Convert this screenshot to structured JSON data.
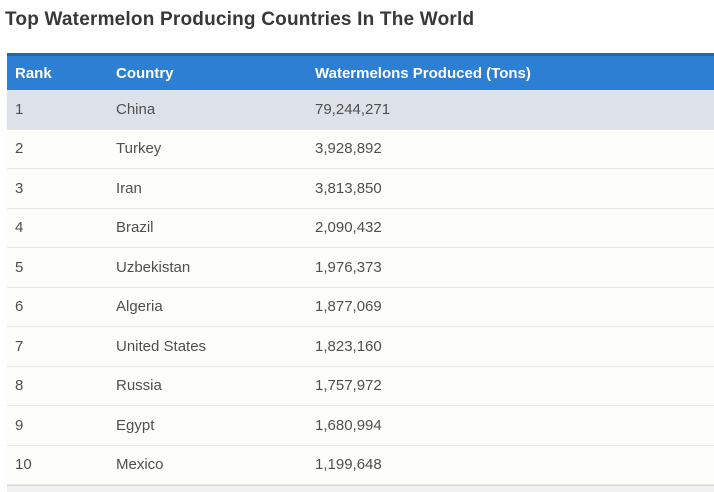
{
  "page": {
    "title": "Top Watermelon Producing Countries In The World"
  },
  "table": {
    "columns": [
      "Rank",
      "Country",
      "Watermelons Produced (Tons)"
    ],
    "rows": [
      {
        "rank": "1",
        "country": "China",
        "produced": "79,244,271",
        "highlighted": true
      },
      {
        "rank": "2",
        "country": "Turkey",
        "produced": "3,928,892",
        "highlighted": false
      },
      {
        "rank": "3",
        "country": "Iran",
        "produced": "3,813,850",
        "highlighted": false
      },
      {
        "rank": "4",
        "country": "Brazil",
        "produced": "2,090,432",
        "highlighted": false
      },
      {
        "rank": "5",
        "country": "Uzbekistan",
        "produced": "1,976,373",
        "highlighted": false
      },
      {
        "rank": "6",
        "country": "Algeria",
        "produced": "1,877,069",
        "highlighted": false
      },
      {
        "rank": "7",
        "country": "United States",
        "produced": "1,823,160",
        "highlighted": false
      },
      {
        "rank": "8",
        "country": "Russia",
        "produced": "1,757,972",
        "highlighted": false
      },
      {
        "rank": "9",
        "country": "Egypt",
        "produced": "1,680,994",
        "highlighted": false
      },
      {
        "rank": "10",
        "country": "Mexico",
        "produced": "1,199,648",
        "highlighted": false
      }
    ]
  },
  "colors": {
    "title_text": "#383838",
    "header_bg": "#2d7fd3",
    "header_border": "#2465ae",
    "header_text": "#ffffff",
    "highlight_row_bg": "#dde2e9",
    "row_bg": "#fdfdfa",
    "row_border": "#e8e8e6",
    "body_text": "#4f4f4f",
    "footer_strip_bg": "#f1f1f1",
    "footer_strip_border": "#d6d6d6"
  },
  "chart_data": {
    "type": "table",
    "title": "Top Watermelon Producing Countries In The World",
    "columns": [
      "Rank",
      "Country",
      "Watermelons Produced (Tons)"
    ],
    "rows": [
      [
        1,
        "China",
        79244271
      ],
      [
        2,
        "Turkey",
        3928892
      ],
      [
        3,
        "Iran",
        3813850
      ],
      [
        4,
        "Brazil",
        2090432
      ],
      [
        5,
        "Uzbekistan",
        1976373
      ],
      [
        6,
        "Algeria",
        1877069
      ],
      [
        7,
        "United States",
        1823160
      ],
      [
        8,
        "Russia",
        1757972
      ],
      [
        9,
        "Egypt",
        1680994
      ],
      [
        10,
        "Mexico",
        1199648
      ]
    ],
    "layout_hints": {
      "highlighted_row_index": 0,
      "header_style": "solid-blue",
      "value_alignment": "left"
    }
  }
}
